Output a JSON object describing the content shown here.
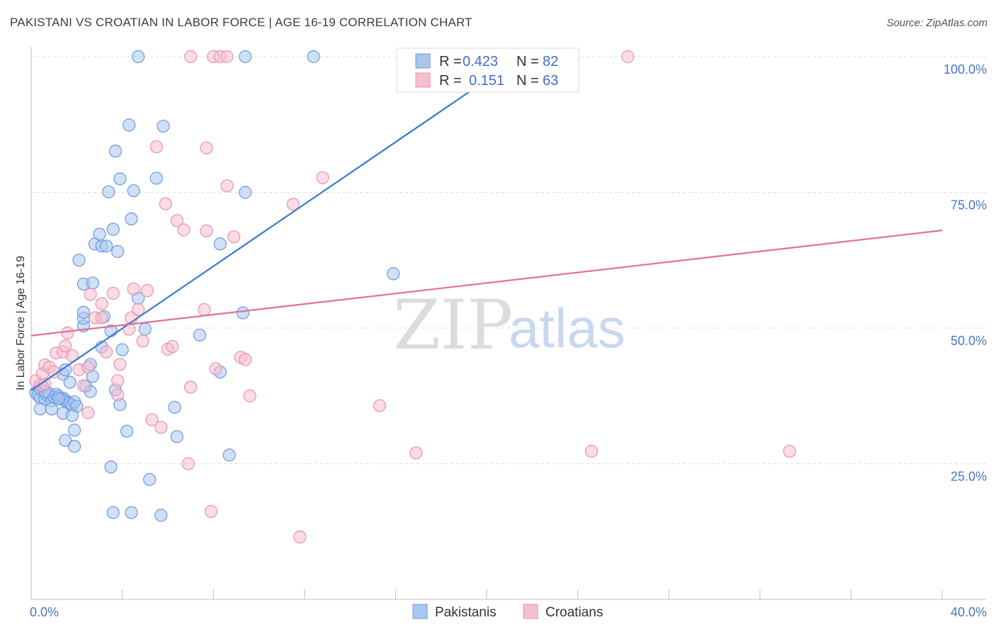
{
  "header": {
    "title": "PAKISTANI VS CROATIAN IN LABOR FORCE | AGE 16-19 CORRELATION CHART",
    "source": "Source: ZipAtlas.com"
  },
  "watermark": {
    "zip": "ZIP",
    "atlas": "atlas"
  },
  "colors": {
    "blue_fill": "#a9c6ee",
    "blue_stroke": "#6b9ae0",
    "blue_line": "#3a78d4",
    "pink_fill": "#f6bfd0",
    "pink_stroke": "#ec8fae",
    "pink_line": "#e06f98",
    "grid": "#d8dde6",
    "axis": "#bfbfbf"
  },
  "legend": {
    "rows": [
      {
        "r_label": "R = ",
        "r_value": "0.423",
        "n_label": "N = ",
        "n_value": "82",
        "series": "blue"
      },
      {
        "r_label": "R = ",
        "r_value": "0.151",
        "n_label": "N = ",
        "n_value": "63",
        "series": "pink"
      }
    ]
  },
  "bottom_legend": [
    {
      "label": "Pakistanis",
      "series": "blue"
    },
    {
      "label": "Croatians",
      "series": "pink"
    }
  ],
  "chart_data": {
    "type": "scatter",
    "title": "PAKISTANI VS CROATIAN IN LABOR FORCE | AGE 16-19 CORRELATION CHART",
    "xlabel": "",
    "ylabel": "In Labor Force | Age 16-19",
    "xlim": [
      0,
      40
    ],
    "ylim": [
      0,
      100
    ],
    "x_tick_labels": [
      {
        "value": 0,
        "label": "0.0%"
      },
      {
        "value": 40,
        "label": "40.0%"
      }
    ],
    "y_tick_labels": [
      {
        "value": 25,
        "label": "25.0%"
      },
      {
        "value": 50,
        "label": "50.0%"
      },
      {
        "value": 75,
        "label": "75.0%"
      },
      {
        "value": 100,
        "label": "100.0%"
      }
    ],
    "grid": true,
    "series": [
      {
        "name": "Pakistanis",
        "color": "blue",
        "R": 0.423,
        "N": 82,
        "trend": {
          "x": [
            0,
            21.5
          ],
          "y": [
            38.5,
            100
          ]
        },
        "points": [
          [
            0.2,
            38.1
          ],
          [
            0.3,
            37.6
          ],
          [
            0.4,
            37.1
          ],
          [
            0.4,
            38.8
          ],
          [
            0.5,
            39.3
          ],
          [
            0.6,
            36.9
          ],
          [
            0.7,
            37.6
          ],
          [
            0.8,
            37.9
          ],
          [
            0.9,
            36.6
          ],
          [
            1.0,
            37.3
          ],
          [
            1.1,
            37.8
          ],
          [
            1.2,
            37.4
          ],
          [
            1.3,
            36.9
          ],
          [
            1.4,
            37.1
          ],
          [
            1.5,
            36.7
          ],
          [
            1.6,
            36.3
          ],
          [
            1.7,
            36.1
          ],
          [
            1.8,
            35.8
          ],
          [
            1.9,
            36.4
          ],
          [
            2.0,
            35.6
          ],
          [
            0.4,
            35.1
          ],
          [
            0.9,
            35.1
          ],
          [
            1.4,
            34.3
          ],
          [
            1.8,
            33.9
          ],
          [
            1.9,
            31.2
          ],
          [
            1.5,
            29.3
          ],
          [
            1.9,
            28.2
          ],
          [
            1.4,
            41.5
          ],
          [
            1.5,
            42.3
          ],
          [
            2.6,
            43.3
          ],
          [
            1.7,
            40.0
          ],
          [
            2.4,
            39.3
          ],
          [
            2.6,
            38.3
          ],
          [
            2.7,
            41.1
          ],
          [
            3.1,
            46.5
          ],
          [
            2.3,
            50.4
          ],
          [
            2.3,
            51.8
          ],
          [
            2.3,
            52.9
          ],
          [
            3.2,
            52.1
          ],
          [
            3.5,
            49.5
          ],
          [
            2.3,
            58.1
          ],
          [
            2.7,
            58.3
          ],
          [
            2.1,
            62.5
          ],
          [
            2.8,
            65.5
          ],
          [
            3.0,
            67.3
          ],
          [
            3.1,
            65.1
          ],
          [
            3.3,
            65.1
          ],
          [
            3.8,
            64.1
          ],
          [
            3.6,
            68.2
          ],
          [
            3.4,
            75.1
          ],
          [
            3.9,
            77.5
          ],
          [
            4.5,
            75.3
          ],
          [
            4.4,
            70.1
          ],
          [
            3.7,
            82.6
          ],
          [
            4.3,
            87.4
          ],
          [
            5.5,
            77.6
          ],
          [
            5.8,
            87.2
          ],
          [
            4.7,
            100.0
          ],
          [
            9.4,
            100.0
          ],
          [
            12.4,
            100.0
          ],
          [
            3.7,
            38.6
          ],
          [
            3.9,
            35.9
          ],
          [
            4.2,
            31.0
          ],
          [
            3.5,
            24.4
          ],
          [
            5.2,
            22.1
          ],
          [
            3.6,
            16.0
          ],
          [
            4.4,
            16.0
          ],
          [
            5.7,
            15.5
          ],
          [
            6.3,
            35.4
          ],
          [
            6.4,
            30.0
          ],
          [
            4.7,
            55.5
          ],
          [
            5.0,
            49.8
          ],
          [
            7.4,
            48.7
          ],
          [
            8.3,
            65.5
          ],
          [
            8.3,
            41.9
          ],
          [
            8.7,
            26.6
          ],
          [
            9.4,
            75.0
          ],
          [
            9.3,
            52.8
          ],
          [
            15.9,
            60.0
          ],
          [
            4.0,
            46.0
          ],
          [
            1.2,
            37.0
          ],
          [
            0.6,
            38.3
          ]
        ]
      },
      {
        "name": "Croatians",
        "color": "pink",
        "R": 0.151,
        "N": 63,
        "trend": {
          "x": [
            0,
            40
          ],
          "y": [
            48.6,
            68.0
          ]
        },
        "points": [
          [
            0.2,
            40.3
          ],
          [
            0.4,
            39.5
          ],
          [
            0.6,
            39.7
          ],
          [
            0.5,
            41.6
          ],
          [
            0.6,
            43.2
          ],
          [
            0.8,
            42.8
          ],
          [
            1.0,
            41.9
          ],
          [
            1.1,
            45.4
          ],
          [
            1.4,
            45.6
          ],
          [
            1.5,
            46.7
          ],
          [
            1.8,
            44.9
          ],
          [
            1.6,
            49.1
          ],
          [
            2.1,
            42.3
          ],
          [
            2.5,
            42.8
          ],
          [
            2.3,
            39.4
          ],
          [
            2.5,
            34.4
          ],
          [
            2.6,
            56.2
          ],
          [
            2.8,
            51.9
          ],
          [
            3.1,
            51.9
          ],
          [
            3.1,
            54.5
          ],
          [
            3.3,
            45.6
          ],
          [
            3.6,
            56.4
          ],
          [
            3.8,
            40.3
          ],
          [
            3.8,
            37.7
          ],
          [
            3.9,
            43.3
          ],
          [
            4.3,
            49.8
          ],
          [
            4.4,
            51.9
          ],
          [
            4.5,
            57.2
          ],
          [
            4.7,
            53.4
          ],
          [
            4.9,
            47.6
          ],
          [
            5.1,
            56.9
          ],
          [
            5.3,
            33.1
          ],
          [
            5.7,
            31.7
          ],
          [
            5.5,
            83.4
          ],
          [
            5.9,
            72.9
          ],
          [
            6.0,
            46.1
          ],
          [
            6.2,
            46.6
          ],
          [
            6.4,
            69.8
          ],
          [
            6.7,
            68.1
          ],
          [
            6.9,
            25.0
          ],
          [
            7.0,
            39.1
          ],
          [
            7.6,
            53.4
          ],
          [
            7.7,
            67.9
          ],
          [
            7.7,
            83.2
          ],
          [
            7.9,
            16.2
          ],
          [
            8.0,
            100.0
          ],
          [
            8.3,
            100.0
          ],
          [
            8.6,
            100.0
          ],
          [
            8.1,
            42.5
          ],
          [
            8.6,
            76.2
          ],
          [
            8.9,
            66.8
          ],
          [
            9.2,
            44.6
          ],
          [
            9.4,
            44.2
          ],
          [
            9.6,
            37.5
          ],
          [
            7.0,
            100.0
          ],
          [
            11.5,
            72.8
          ],
          [
            12.8,
            77.7
          ],
          [
            11.8,
            11.5
          ],
          [
            15.3,
            35.7
          ],
          [
            16.9,
            27.0
          ],
          [
            24.6,
            27.3
          ],
          [
            26.2,
            100.0
          ],
          [
            33.3,
            27.3
          ]
        ]
      }
    ]
  }
}
